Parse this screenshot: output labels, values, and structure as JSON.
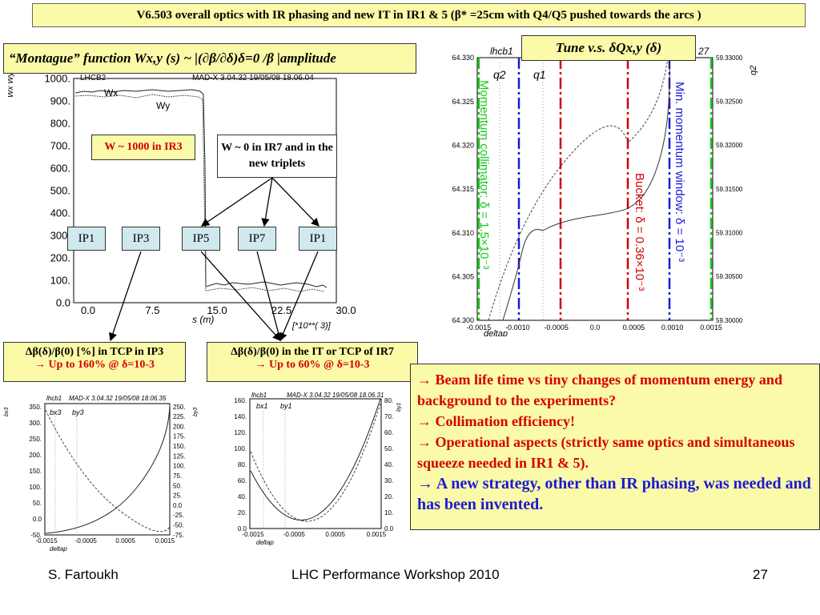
{
  "slide": {
    "title": "V6.503 overall optics with IR phasing and new IT in  IR1 & 5 (β* =25cm with Q4/Q5 pushed towards the arcs )",
    "footer_left": "S. Fartoukh",
    "footer_center": "LHC Performance Workshop 2010",
    "footer_right": "27"
  },
  "montague": {
    "box_text": "“Montague” function Wx,y (s) ~ |(∂β/∂δ)δ=0 /β |amplitude",
    "w_ir3": "W ~ 1000 in IR3",
    "w_ir7": "W ~ 0 in IR7 and in the new triplets",
    "ips": [
      "IP1",
      "IP3",
      "IP5",
      "IP7",
      "IP1"
    ],
    "yticks": [
      "1000.",
      "900.",
      "800.",
      "700.",
      "600.",
      "500.",
      "400.",
      "300.",
      "200.",
      "100.",
      "0.0"
    ],
    "xticks": [
      "0.0",
      "7.5",
      "15.0",
      "22.5",
      "30.0"
    ],
    "xlabel": "s (m)",
    "xscale": "[*10**(  3)]",
    "ylabel": "Wx  Wy",
    "header_left": "LHCB2",
    "header_right": "MAD-X 3.04.32  19/05/08 18.06.04",
    "curve_wx": "Wx",
    "curve_wy": "Wy"
  },
  "tcp_ir3": {
    "line1": "Δβ(δ)/β(0) [%] in TCP in IP3",
    "line2": "→ Up to 160% @ δ=10-3"
  },
  "tcp_ir7": {
    "line1": "Δβ(δ)/β(0) in the IT or TCP of IR7",
    "line2": "→ Up to 60% @ δ=10-3"
  },
  "tune": {
    "box_text": "Tune v.s. δQx,y (δ)",
    "header_left": "lhcb1",
    "header_right": "27",
    "q1_label": "q1",
    "q2_label": "q2",
    "q2_axis": "q2",
    "left_ticks": [
      "64.330",
      "64.325",
      "64.320",
      "64.315",
      "64.310",
      "64.305",
      "64.300"
    ],
    "right_ticks": [
      "59.33000",
      "59.32500",
      "59.32000",
      "59.31500",
      "59.31000",
      "59.30500",
      "59.30000"
    ],
    "x_ticks": [
      "-0.0015",
      "-0.0010",
      "-0.0005",
      "0.0",
      "0.0005",
      "0.0010",
      "0.0015"
    ],
    "xlabel": "deltap",
    "collimator_label": "Momentum collimator: δ = 1.5×10⁻³",
    "bucket_label": "Bucket: δ = 0.36×10⁻³",
    "window_label": "Min. momentum window: δ = 10⁻³"
  },
  "bullets": [
    "→ Beam life time vs tiny changes of momentum energy and background to the experiments?",
    "→ Collimation efficiency!",
    "→ Operational aspects (strictly same optics and simultaneous squeeze needed in IR1 & 5).",
    "→ A new strategy, other than IR phasing, was needed and has been invented."
  ],
  "plot_ir3": {
    "header_left": "lhcb1",
    "header_right": "MAD-X 3.04.32  19/05/08 18.06.35",
    "legend1": "bx3",
    "legend2": "by3",
    "left_ylabel": "bx3",
    "right_ylabel": "by3",
    "left_ticks": [
      "350.",
      "300.",
      "250.",
      "200.",
      "150.",
      "100.",
      "50.",
      "0.0",
      "-50."
    ],
    "right_ticks": [
      "250.",
      "225.",
      "200.",
      "175.",
      "150.",
      "125.",
      "100.",
      "75.",
      "50.",
      "25.",
      "0.0",
      "-25.",
      "-50.",
      "-75."
    ],
    "x_ticks": [
      "-0.0015",
      "-0.0005",
      "0.0005",
      "0.0015"
    ],
    "xlabel": "deltap"
  },
  "plot_ir7": {
    "header_left": "lhcb1",
    "header_right": "MAD-X 3.04.32  19/05/08 18.06.31",
    "legend1": "bx1",
    "legend2": "by1",
    "right_ylabel": "by1",
    "left_ticks": [
      "160.",
      "140.",
      "120.",
      "100.",
      "80.",
      "60.",
      "40.",
      "20.",
      "0.0"
    ],
    "right_ticks": [
      "80.",
      "70.",
      "60.",
      "50.",
      "40.",
      "30.",
      "20.",
      "10.",
      "0.0"
    ],
    "x_ticks": [
      "-0.0015",
      "-0.0005",
      "0.0005",
      "0.0015"
    ],
    "xlabel": "deltap"
  },
  "colors": {
    "box_yellow": "#fbfaa8",
    "ip_blue": "#cfe9ef",
    "red": "#d40000",
    "blue": "#1a1ad4",
    "green": "#18c818"
  }
}
